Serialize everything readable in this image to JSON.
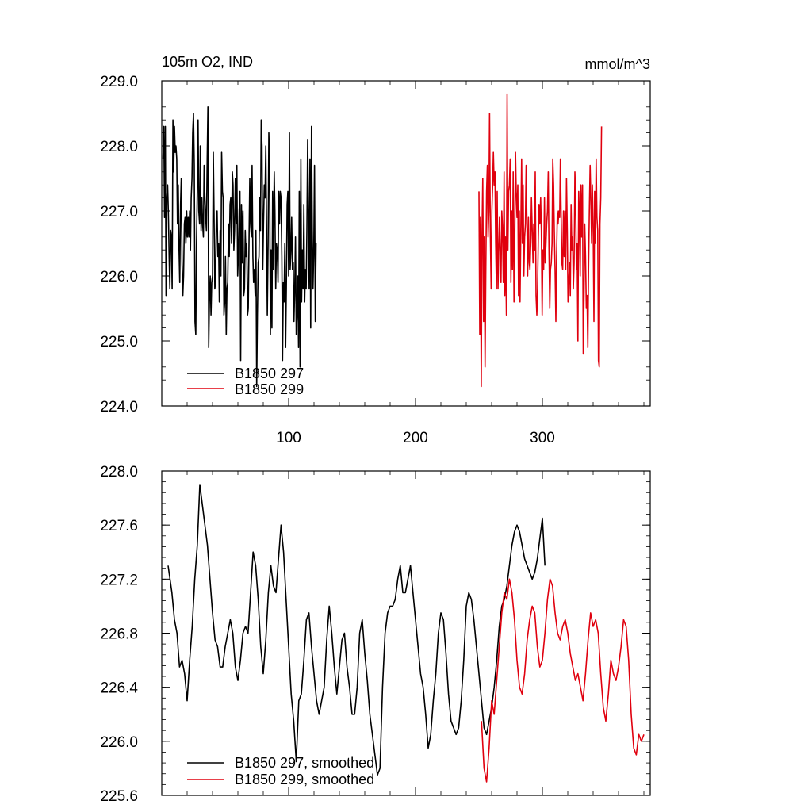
{
  "chart_data": [
    {
      "type": "line",
      "title": "105m O2, IND",
      "units": "mmol/m^3",
      "xlim": [
        0,
        385
      ],
      "ylim": [
        224.0,
        229.0
      ],
      "x_ticks": [
        100,
        200,
        300
      ],
      "y_ticks": [
        "229.0",
        "228.0",
        "227.0",
        "226.0",
        "225.0",
        "224.0"
      ],
      "series": [
        {
          "name": "B1850 297",
          "color": "#000000",
          "x_start": 1,
          "values": [
            227.8,
            228.3,
            226.9,
            228.3,
            225.7,
            227.2,
            227.4,
            227.0,
            226.3,
            225.8,
            226.7,
            226.6,
            225.8,
            228.4,
            227.6,
            228.3,
            227.9,
            228.0,
            227.8,
            226.8,
            227.4,
            226.4,
            225.9,
            227.1,
            227.5,
            226.2,
            225.7,
            226.0,
            226.8,
            226.9,
            226.5,
            227.0,
            226.6,
            226.9,
            226.6,
            227.0,
            226.4,
            227.2,
            227.5,
            228.2,
            228.5,
            227.7,
            225.3,
            225.1,
            226.5,
            227.3,
            228.4,
            227.0,
            226.8,
            228.0,
            226.7,
            227.2,
            226.8,
            226.6,
            227.7,
            227.2,
            226.9,
            226.7,
            227.8,
            228.6,
            224.9,
            225.7,
            226.0,
            225.4,
            225.9,
            226.0,
            227.9,
            227.0,
            225.8,
            225.9,
            226.9,
            227.0,
            226.3,
            226.5,
            225.6,
            226.7,
            226.0,
            227.9,
            227.3,
            227.2,
            225.4,
            225.6,
            226.3,
            225.1,
            225.8,
            225.9,
            226.8,
            226.3,
            227.1,
            227.2,
            226.5,
            227.6,
            227.4,
            226.4,
            226.7,
            227.5,
            226.8,
            227.7,
            226.0,
            226.3,
            227.0,
            227.3,
            224.7,
            227.1,
            226.2,
            227.0,
            225.7,
            225.8,
            226.7,
            226.3,
            226.5,
            225.4,
            225.5,
            226.6,
            227.5,
            226.8,
            226.6,
            227.7,
            226.3,
            225.9,
            226.1,
            225.7,
            226.7,
            224.3,
            225.4,
            226.2,
            226.3,
            227.2,
            226.7,
            228.4,
            228.0,
            226.1,
            226.8,
            227.4,
            227.2,
            228.0,
            226.7,
            225.4,
            226.5,
            228.2,
            227.7,
            225.1,
            226.4,
            225.2,
            227.3,
            226.1,
            227.6,
            227.0,
            225.8,
            226.5,
            226.4,
            225.9,
            227.3,
            226.8,
            227.3,
            227.2,
            226.3,
            224.7,
            225.9,
            225.6,
            226.5,
            224.9,
            225.8,
            227.1,
            227.3,
            226.0,
            228.2,
            226.1,
            226.4,
            226.9,
            226.1,
            226.2,
            225.3,
            225.8,
            226.6,
            225.1,
            225.4,
            226.0,
            224.9,
            227.3,
            224.6,
            227.8,
            225.6,
            226.4,
            225.8,
            227.1,
            225.6,
            226.1,
            225.8,
            226.7,
            228.1,
            226.9,
            225.8,
            227.8,
            225.2,
            228.3,
            226.7,
            225.8,
            226.4,
            227.7,
            225.3,
            226.5
          ],
          "smoothed": false
        },
        {
          "name": "B1850 299",
          "color": "#e0000e",
          "x_start": 250,
          "values": [
            227.3,
            225.1,
            226.9,
            224.3,
            226.6,
            227.5,
            225.3,
            226.6,
            224.6,
            226.0,
            227.3,
            227.7,
            226.6,
            227.0,
            228.5,
            226.6,
            225.8,
            227.0,
            227.4,
            227.9,
            227.4,
            227.6,
            226.5,
            225.8,
            227.3,
            225.8,
            226.4,
            226.9,
            226.3,
            225.9,
            227.0,
            226.7,
            225.9,
            227.6,
            225.7,
            226.6,
            225.4,
            228.8,
            226.4,
            227.3,
            227.4,
            227.8,
            225.9,
            227.0,
            226.1,
            227.6,
            225.6,
            226.5,
            227.9,
            227.3,
            226.9,
            227.4,
            225.7,
            227.0,
            225.6,
            226.7,
            227.8,
            226.5,
            227.4,
            226.0,
            226.6,
            226.8,
            227.7,
            226.8,
            226.0,
            226.9,
            226.2,
            226.1,
            226.5,
            227.2,
            226.7,
            226.2,
            226.8,
            226.4,
            227.6,
            225.7,
            225.4,
            225.8,
            226.6,
            227.1,
            226.8,
            227.2,
            226.7,
            225.4,
            226.4,
            226.1,
            227.2,
            226.2,
            226.5,
            226.8,
            227.0,
            227.6,
            226.4,
            225.5,
            226.1,
            226.2,
            226.5,
            227.8,
            227.4,
            226.7,
            226.1,
            225.3,
            226.3,
            227.0,
            226.8,
            227.0,
            226.9,
            227.8,
            226.9,
            226.2,
            226.1,
            227.0,
            226.3,
            227.0,
            226.1,
            227.5,
            226.7,
            225.6,
            225.9,
            226.2,
            225.7,
            227.1,
            226.4,
            226.6,
            225.8,
            226.2,
            227.6,
            227.2,
            226.1,
            226.5,
            225.0,
            227.3,
            226.9,
            226.0,
            227.4,
            226.6,
            227.4,
            224.8,
            225.7,
            226.8,
            226.3,
            225.5,
            225.7,
            224.9,
            226.1,
            227.0,
            227.7,
            227.2,
            226.5,
            227.4,
            226.8,
            225.3,
            227.3,
            226.5,
            227.8,
            226.9,
            226.7,
            224.7,
            224.6,
            226.8,
            227.2,
            228.3
          ],
          "smoothed": false
        }
      ],
      "legend": {
        "position": "bottom-left",
        "entries": [
          "B1850 297",
          "B1850 299"
        ]
      }
    },
    {
      "type": "line",
      "title": "",
      "xlim": [
        0,
        385
      ],
      "ylim": [
        225.6,
        228.0
      ],
      "y_ticks": [
        "228.0",
        "227.6",
        "227.2",
        "226.8",
        "226.4",
        "226.0",
        "225.6"
      ],
      "series": [
        {
          "name": "B1850 297, smoothed",
          "color": "#000000",
          "x_knots": [
            5,
            8,
            10,
            12,
            14,
            16,
            18,
            20,
            22,
            24,
            26,
            28,
            30,
            32,
            34,
            36,
            38,
            40,
            42,
            44,
            46,
            48,
            50,
            52,
            54,
            56,
            58,
            60,
            62,
            64,
            66,
            68,
            70,
            72,
            74,
            76,
            78,
            80,
            82,
            84,
            86,
            88,
            90,
            92,
            94,
            96,
            98,
            100,
            102,
            104,
            106,
            108,
            110,
            112,
            114,
            116,
            118,
            120,
            122,
            124,
            126,
            128,
            130,
            132,
            134,
            136,
            138,
            140,
            142,
            144,
            146,
            148,
            150,
            152,
            154,
            156,
            158,
            160,
            162,
            164,
            166,
            168,
            170,
            172,
            174,
            176,
            178,
            180,
            182,
            184,
            186,
            188,
            190,
            192,
            194,
            196,
            198,
            200,
            202,
            204,
            206,
            208,
            210,
            212,
            214,
            216,
            218,
            220,
            222,
            224,
            226,
            228,
            230,
            232,
            234,
            236,
            238,
            240,
            242,
            244,
            246,
            248,
            250,
            252,
            254,
            256,
            258,
            260,
            262,
            264,
            266,
            268,
            270,
            272,
            274,
            276,
            278,
            280,
            282,
            284,
            286,
            288,
            290,
            292,
            294,
            296,
            298,
            300,
            302
          ],
          "knot_values": [
            227.3,
            227.1,
            226.9,
            226.8,
            226.55,
            226.6,
            226.5,
            226.3,
            226.6,
            226.85,
            227.2,
            227.45,
            227.9,
            227.75,
            227.6,
            227.45,
            227.2,
            226.95,
            226.75,
            226.7,
            226.55,
            226.55,
            226.7,
            226.8,
            226.9,
            226.8,
            226.55,
            226.45,
            226.6,
            226.8,
            226.85,
            226.8,
            227.1,
            227.4,
            227.3,
            227.05,
            226.7,
            226.5,
            226.75,
            227.1,
            227.3,
            227.15,
            227.1,
            227.35,
            227.6,
            227.4,
            227.05,
            226.7,
            226.35,
            226.15,
            225.85,
            226.3,
            226.35,
            226.6,
            226.9,
            226.95,
            226.7,
            226.5,
            226.3,
            226.2,
            226.3,
            226.4,
            226.75,
            227.0,
            226.8,
            226.55,
            226.35,
            226.55,
            226.75,
            226.8,
            226.55,
            226.4,
            226.2,
            226.2,
            226.4,
            226.8,
            226.9,
            226.65,
            226.45,
            226.2,
            226.05,
            225.9,
            225.75,
            225.8,
            226.4,
            226.8,
            226.95,
            227.0,
            227.0,
            227.05,
            227.2,
            227.3,
            227.1,
            227.1,
            227.2,
            227.3,
            227.1,
            226.9,
            226.7,
            226.5,
            226.4,
            226.2,
            225.95,
            226.05,
            226.3,
            226.5,
            226.8,
            226.95,
            226.9,
            226.65,
            226.35,
            226.15,
            226.1,
            226.05,
            226.1,
            226.3,
            226.6,
            227.0,
            227.1,
            227.05,
            226.9,
            226.7,
            226.5,
            226.3,
            226.1,
            226.05,
            226.15,
            226.25,
            226.4,
            226.6,
            226.85,
            227.0,
            227.05,
            227.15,
            227.3,
            227.45,
            227.55,
            227.6,
            227.55,
            227.45,
            227.35,
            227.3,
            227.25,
            227.2,
            227.25,
            227.35,
            227.5,
            227.65,
            227.3
          ],
          "smoothed": true
        },
        {
          "name": "B1850 299, smoothed",
          "color": "#e0000e",
          "x_knots": [
            252,
            254,
            256,
            258,
            260,
            262,
            264,
            266,
            268,
            270,
            272,
            274,
            276,
            278,
            280,
            282,
            284,
            286,
            288,
            290,
            292,
            294,
            296,
            298,
            300,
            302,
            304,
            306,
            308,
            310,
            312,
            314,
            316,
            318,
            320,
            322,
            324,
            326,
            328,
            330,
            332,
            334,
            336,
            338,
            340,
            342,
            344,
            346,
            348,
            350,
            352,
            354,
            356,
            358,
            360,
            362,
            364,
            366,
            368,
            370,
            372,
            374,
            376,
            378,
            380
          ],
          "knot_values": [
            226.15,
            225.8,
            225.7,
            225.95,
            226.3,
            226.2,
            226.45,
            226.7,
            226.95,
            227.1,
            227.05,
            227.2,
            227.1,
            226.9,
            226.6,
            226.4,
            226.35,
            226.5,
            226.75,
            226.9,
            227.0,
            226.95,
            226.7,
            226.55,
            226.6,
            226.8,
            227.05,
            227.2,
            227.15,
            226.95,
            226.8,
            226.75,
            226.85,
            226.9,
            226.8,
            226.65,
            226.55,
            226.45,
            226.5,
            226.4,
            226.3,
            226.5,
            226.75,
            226.95,
            226.85,
            226.9,
            226.8,
            226.5,
            226.25,
            226.15,
            226.35,
            226.6,
            226.5,
            226.45,
            226.55,
            226.7,
            226.9,
            226.85,
            226.6,
            226.2,
            225.95,
            225.9,
            226.05,
            226.0,
            226.05
          ],
          "smoothed": true
        }
      ],
      "legend": {
        "position": "bottom-left",
        "entries": [
          "B1850 297, smoothed",
          "B1850 299, smoothed"
        ]
      }
    }
  ]
}
